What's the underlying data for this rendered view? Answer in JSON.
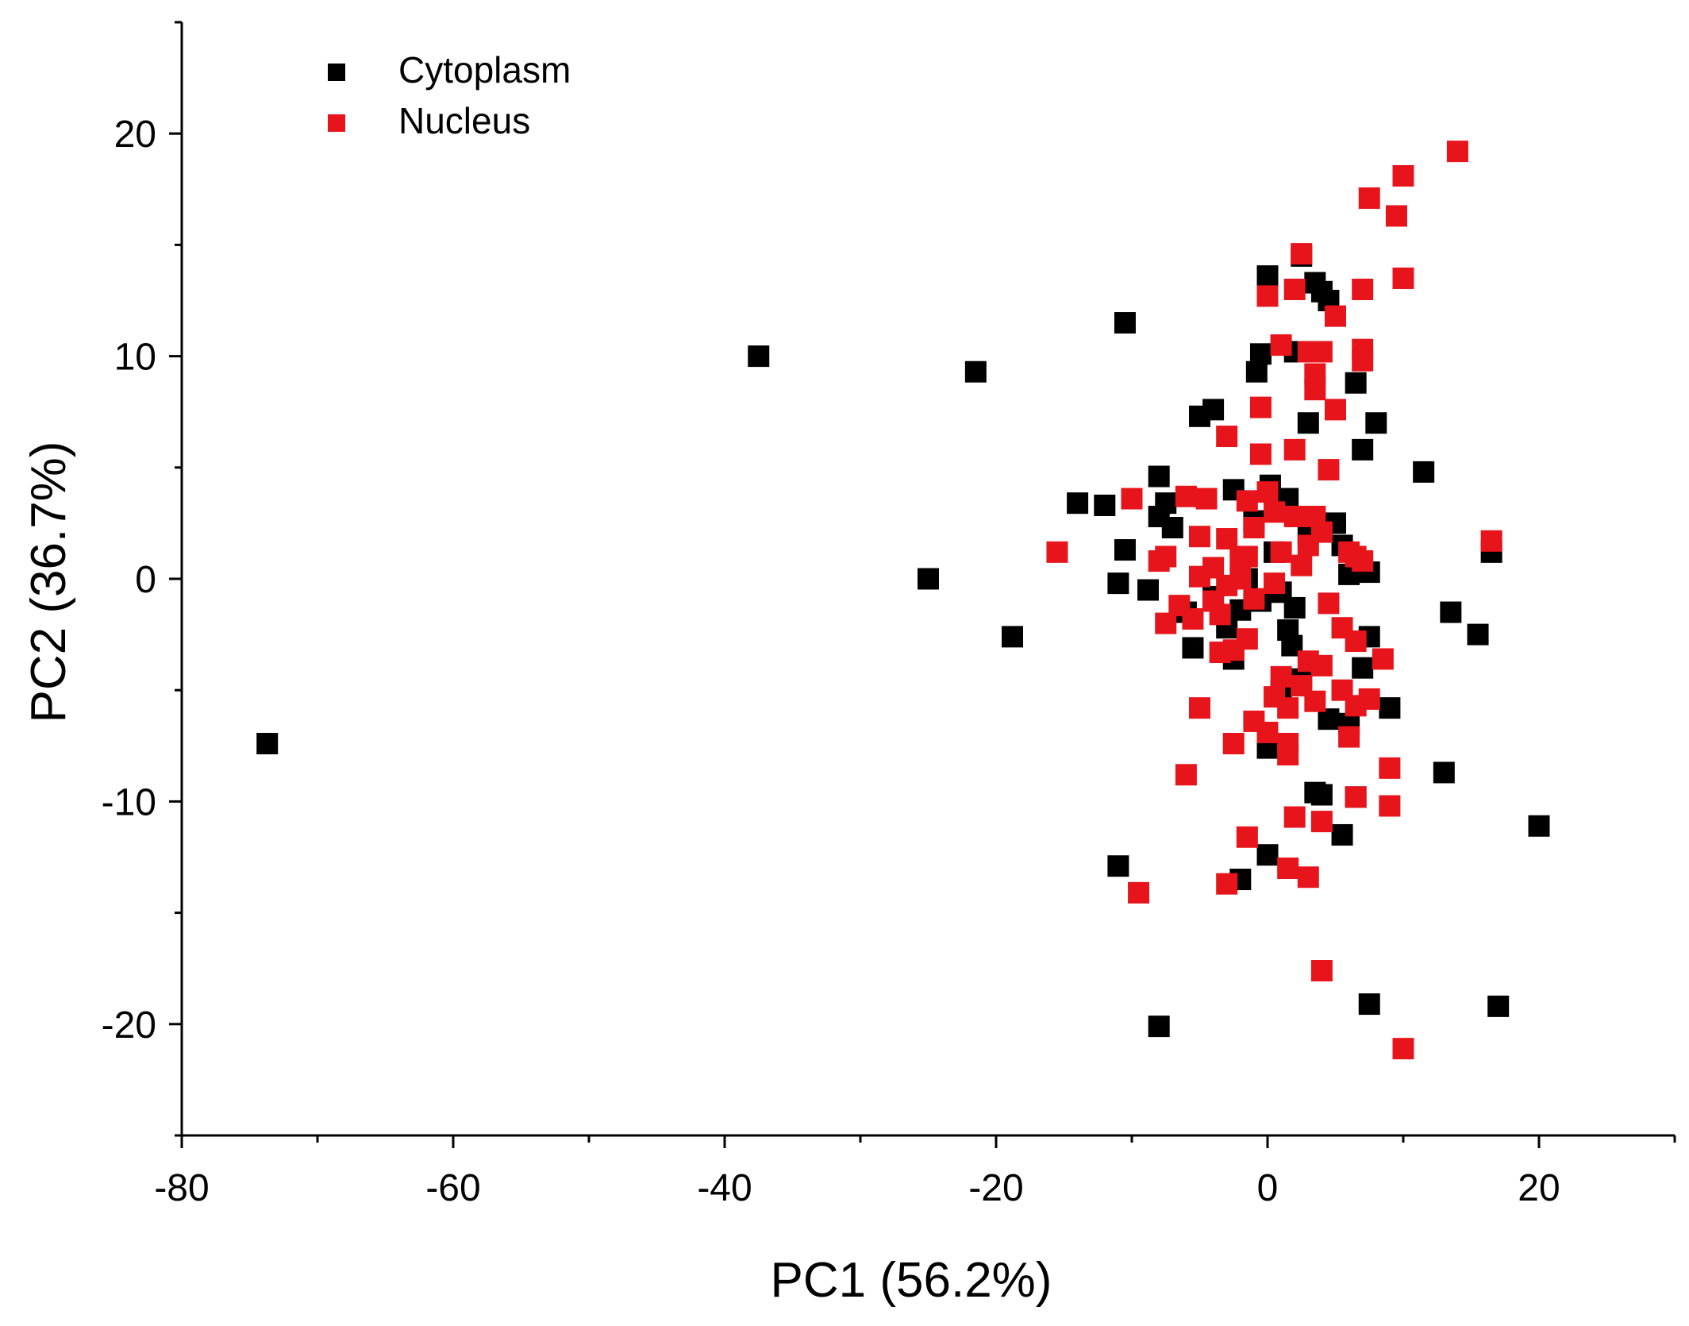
{
  "chart_data": {
    "type": "scatter",
    "title": "",
    "xlabel": "PC1 (56.2%)",
    "ylabel": "PC2 (36.7%)",
    "xlim": [
      -80,
      30
    ],
    "ylim": [
      -25,
      25
    ],
    "x_ticks": [
      -80,
      -60,
      -40,
      -20,
      0,
      20
    ],
    "y_ticks": [
      -20,
      -10,
      0,
      10,
      20
    ],
    "grid": false,
    "legend": "top-left",
    "series": [
      {
        "name": "Cytoplasm",
        "color": "#000000",
        "points": [
          [
            -73.7,
            -7.4
          ],
          [
            -37.5,
            10.0
          ],
          [
            -21.5,
            9.3
          ],
          [
            -25.0,
            0.0
          ],
          [
            -18.8,
            -2.6
          ],
          [
            -10.5,
            11.5
          ],
          [
            -14.0,
            3.4
          ],
          [
            -12.0,
            3.3
          ],
          [
            -10.5,
            1.3
          ],
          [
            -11.0,
            -0.2
          ],
          [
            -8.8,
            -0.5
          ],
          [
            -8.0,
            4.6
          ],
          [
            -8.0,
            2.8
          ],
          [
            -7.5,
            3.4
          ],
          [
            -7.0,
            2.3
          ],
          [
            -5.0,
            7.3
          ],
          [
            -4.0,
            7.6
          ],
          [
            -2.5,
            4.0
          ],
          [
            -6.0,
            -1.5
          ],
          [
            -5.5,
            -3.1
          ],
          [
            -4.0,
            -0.8
          ],
          [
            -3.0,
            -2.2
          ],
          [
            -2.5,
            -3.6
          ],
          [
            -1.5,
            0.0
          ],
          [
            -0.8,
            9.3
          ],
          [
            -0.5,
            10.1
          ],
          [
            0.0,
            13.6
          ],
          [
            0.2,
            4.2
          ],
          [
            1.0,
            -0.6
          ],
          [
            1.5,
            3.6
          ],
          [
            2.0,
            10.2
          ],
          [
            2.5,
            14.5
          ],
          [
            3.0,
            7.0
          ],
          [
            3.5,
            13.3
          ],
          [
            4.0,
            12.9
          ],
          [
            4.5,
            12.5
          ],
          [
            5.0,
            2.5
          ],
          [
            5.5,
            1.5
          ],
          [
            6.0,
            0.2
          ],
          [
            6.5,
            8.8
          ],
          [
            7.0,
            5.8
          ],
          [
            7.5,
            0.3
          ],
          [
            8.0,
            7.0
          ],
          [
            7.5,
            -2.6
          ],
          [
            7.0,
            -4.0
          ],
          [
            6.5,
            -9.8
          ],
          [
            6.0,
            -6.5
          ],
          [
            5.5,
            -11.5
          ],
          [
            4.5,
            -6.3
          ],
          [
            3.5,
            -9.6
          ],
          [
            4.0,
            -9.7
          ],
          [
            2.0,
            -1.3
          ],
          [
            1.5,
            -2.3
          ],
          [
            1.0,
            -5.0
          ],
          [
            0.0,
            -7.6
          ],
          [
            -2.0,
            -13.5
          ],
          [
            -0.0,
            -12.4
          ],
          [
            -11.0,
            -12.9
          ],
          [
            -8.0,
            -20.1
          ],
          [
            7.5,
            -19.1
          ],
          [
            17.0,
            -19.2
          ],
          [
            20.0,
            -11.1
          ],
          [
            13.0,
            -8.7
          ],
          [
            15.5,
            -2.5
          ],
          [
            13.5,
            -1.5
          ],
          [
            16.5,
            1.2
          ],
          [
            11.5,
            4.8
          ],
          [
            9.0,
            -5.8
          ],
          [
            2.5,
            -4.5
          ],
          [
            1.8,
            -3.0
          ],
          [
            -0.5,
            -1.0
          ],
          [
            3.0,
            2.0
          ],
          [
            -1.0,
            2.6
          ],
          [
            -2.0,
            -1.4
          ],
          [
            0.5,
            1.2
          ]
        ]
      },
      {
        "name": "Nucleus",
        "color": "#e8141c",
        "points": [
          [
            14.0,
            19.2
          ],
          [
            10.0,
            18.1
          ],
          [
            7.5,
            17.1
          ],
          [
            9.5,
            16.3
          ],
          [
            10.0,
            13.5
          ],
          [
            7.0,
            13.0
          ],
          [
            2.5,
            14.6
          ],
          [
            2.0,
            13.0
          ],
          [
            0.0,
            12.7
          ],
          [
            5.0,
            11.8
          ],
          [
            1.0,
            10.5
          ],
          [
            3.0,
            10.2
          ],
          [
            4.0,
            10.2
          ],
          [
            7.0,
            10.3
          ],
          [
            7.0,
            9.8
          ],
          [
            3.5,
            8.5
          ],
          [
            3.5,
            9.2
          ],
          [
            5.0,
            7.6
          ],
          [
            -0.5,
            7.7
          ],
          [
            -3.0,
            6.4
          ],
          [
            -0.5,
            5.6
          ],
          [
            2.0,
            5.8
          ],
          [
            4.5,
            4.9
          ],
          [
            -10.0,
            3.6
          ],
          [
            -6.0,
            3.7
          ],
          [
            -4.5,
            3.6
          ],
          [
            -1.5,
            3.5
          ],
          [
            0.0,
            3.9
          ],
          [
            2.0,
            2.8
          ],
          [
            3.5,
            2.8
          ],
          [
            4.0,
            2.1
          ],
          [
            -1.0,
            2.3
          ],
          [
            -3.0,
            1.8
          ],
          [
            -5.0,
            1.9
          ],
          [
            -7.5,
            1.0
          ],
          [
            -8.0,
            0.8
          ],
          [
            -15.5,
            1.2
          ],
          [
            -4.0,
            0.5
          ],
          [
            -2.0,
            0.9
          ],
          [
            1.0,
            1.2
          ],
          [
            2.5,
            0.6
          ],
          [
            6.0,
            1.2
          ],
          [
            6.5,
            1.0
          ],
          [
            7.0,
            0.8
          ],
          [
            16.5,
            1.7
          ],
          [
            -5.0,
            0.1
          ],
          [
            -3.0,
            -0.3
          ],
          [
            -1.0,
            -0.9
          ],
          [
            0.5,
            -0.2
          ],
          [
            4.5,
            -1.1
          ],
          [
            -6.5,
            -1.2
          ],
          [
            -5.5,
            -1.8
          ],
          [
            -3.5,
            -1.6
          ],
          [
            -7.5,
            -2.0
          ],
          [
            -1.5,
            -2.7
          ],
          [
            -2.5,
            -3.2
          ],
          [
            -3.5,
            -3.3
          ],
          [
            5.5,
            -2.2
          ],
          [
            6.5,
            -2.8
          ],
          [
            8.5,
            -3.6
          ],
          [
            3.0,
            -3.7
          ],
          [
            4.0,
            -3.9
          ],
          [
            1.0,
            -4.4
          ],
          [
            2.5,
            -4.8
          ],
          [
            0.5,
            -5.3
          ],
          [
            1.5,
            -5.8
          ],
          [
            3.5,
            -5.5
          ],
          [
            5.5,
            -5.0
          ],
          [
            6.5,
            -5.7
          ],
          [
            7.5,
            -5.4
          ],
          [
            -5.0,
            -5.8
          ],
          [
            -1.0,
            -6.4
          ],
          [
            0.0,
            -6.9
          ],
          [
            1.5,
            -7.4
          ],
          [
            1.5,
            -7.9
          ],
          [
            -2.5,
            -7.4
          ],
          [
            6.0,
            -7.1
          ],
          [
            -6.0,
            -8.8
          ],
          [
            9.0,
            -8.5
          ],
          [
            6.5,
            -9.8
          ],
          [
            9.0,
            -10.2
          ],
          [
            2.0,
            -10.7
          ],
          [
            4.0,
            -10.9
          ],
          [
            -1.5,
            -11.6
          ],
          [
            1.5,
            -13.0
          ],
          [
            3.0,
            -13.4
          ],
          [
            -3.0,
            -13.7
          ],
          [
            -9.5,
            -14.1
          ],
          [
            4.0,
            -17.6
          ],
          [
            10.0,
            -21.1
          ],
          [
            -4.0,
            -1.0
          ],
          [
            -2.0,
            0.0
          ],
          [
            0.5,
            3.0
          ],
          [
            3.0,
            1.5
          ],
          [
            -1.5,
            1.0
          ]
        ]
      }
    ]
  }
}
